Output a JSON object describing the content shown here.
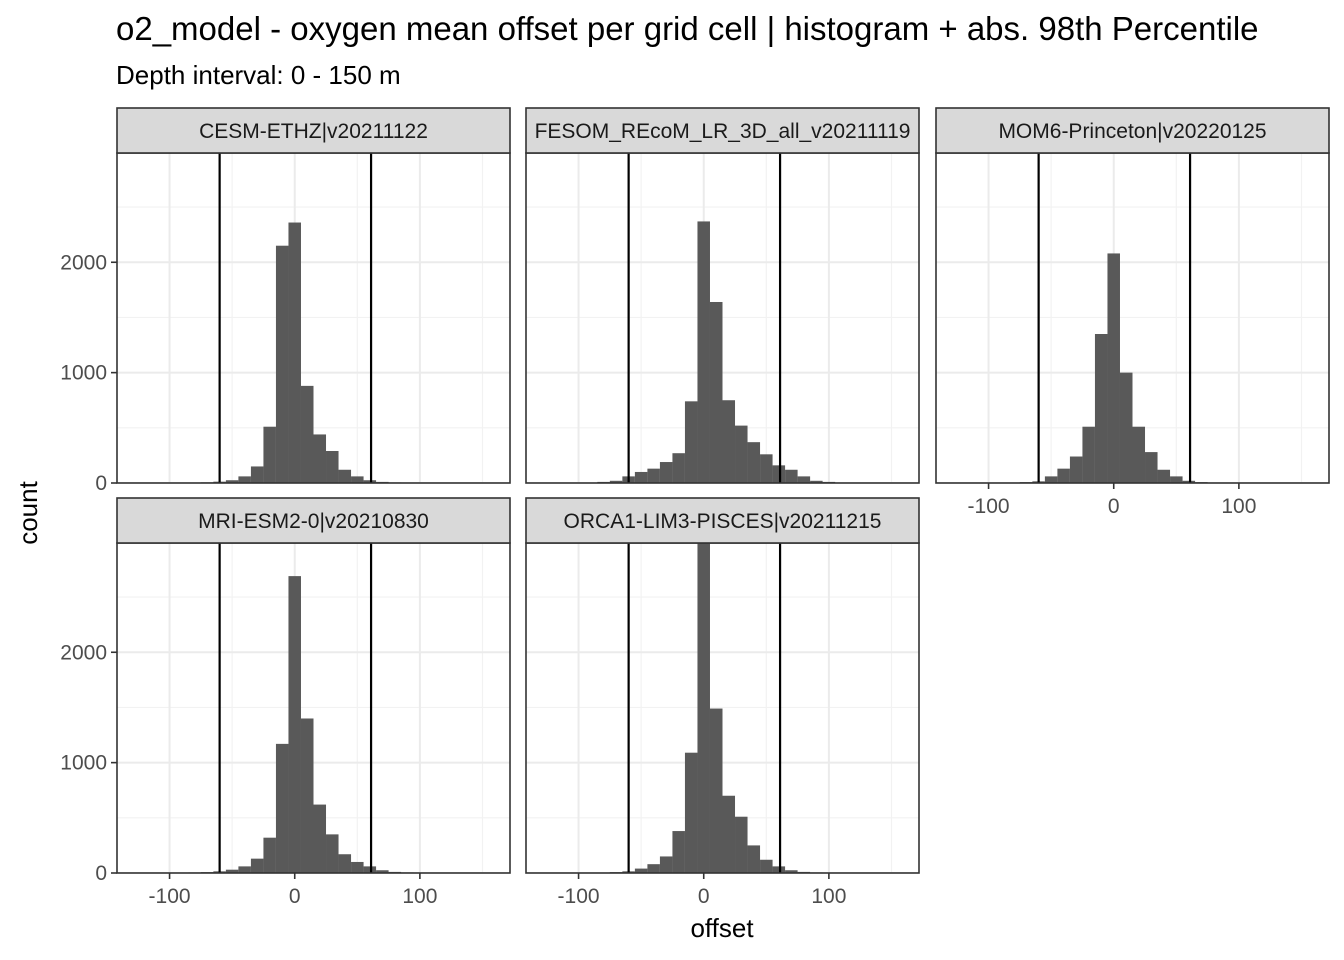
{
  "chart_data": {
    "type": "bar",
    "title": "o2_model  -  oxygen mean offset per grid cell | histogram + abs. 98th Percentile",
    "subtitle": "Depth interval: 0 - 150 m",
    "xlabel": "offset",
    "ylabel": "count",
    "xlim": [
      -142,
      172
    ],
    "ylim": [
      0,
      2990
    ],
    "x_ticks": [
      -100,
      0,
      100
    ],
    "x_tick_labels": [
      "-100",
      "0",
      "100"
    ],
    "y_ticks": [
      0,
      1000,
      2000
    ],
    "y_tick_labels": [
      "0",
      "1000",
      "2000"
    ],
    "bin_centers": [
      -100,
      -90,
      -80,
      -70,
      -60,
      -50,
      -40,
      -30,
      -20,
      -10,
      0,
      10,
      20,
      30,
      40,
      50,
      60,
      70,
      80,
      90,
      100,
      110,
      120,
      130,
      140,
      150
    ],
    "bin_width": 10,
    "grid": true,
    "bar_color": "#595959",
    "vline_color": "#000000",
    "strip_fill": "#d9d9d9",
    "panels": [
      {
        "name": "CESM-ETHZ|v20211122",
        "vlines": [
          -60,
          61
        ],
        "values": [
          0,
          2,
          4,
          6,
          12,
          25,
          60,
          150,
          510,
          2150,
          2360,
          880,
          440,
          290,
          120,
          60,
          25,
          10,
          5,
          3,
          1,
          0,
          0,
          0,
          0,
          0
        ]
      },
      {
        "name": "FESOM_REcoM_LR_3D_all_v20211119",
        "vlines": [
          -60,
          61
        ],
        "values": [
          0,
          4,
          10,
          20,
          60,
          100,
          130,
          190,
          270,
          740,
          2370,
          1640,
          750,
          520,
          370,
          260,
          160,
          120,
          60,
          20,
          10,
          4,
          2,
          0,
          0,
          0
        ]
      },
      {
        "name": "MOM6-Princeton|v20220125",
        "vlines": [
          -60,
          61
        ],
        "values": [
          0,
          2,
          4,
          8,
          15,
          60,
          130,
          240,
          510,
          1350,
          2080,
          1000,
          510,
          280,
          120,
          60,
          20,
          8,
          4,
          2,
          1,
          0,
          0,
          0,
          0,
          0
        ]
      },
      {
        "name": "MRI-ESM2-0|v20210830",
        "vlines": [
          -60,
          61
        ],
        "values": [
          0,
          2,
          5,
          8,
          15,
          30,
          60,
          130,
          320,
          1170,
          2690,
          1400,
          620,
          350,
          170,
          100,
          60,
          25,
          10,
          5,
          2,
          1,
          0,
          0,
          0,
          0
        ]
      },
      {
        "name": "ORCA1-LIM3-PISCES|v20211215",
        "vlines": [
          -60,
          61
        ],
        "values": [
          0,
          2,
          4,
          8,
          15,
          40,
          80,
          150,
          380,
          1090,
          2990,
          1490,
          700,
          510,
          250,
          120,
          60,
          25,
          10,
          5,
          2,
          1,
          0,
          0,
          0,
          0
        ]
      }
    ]
  }
}
